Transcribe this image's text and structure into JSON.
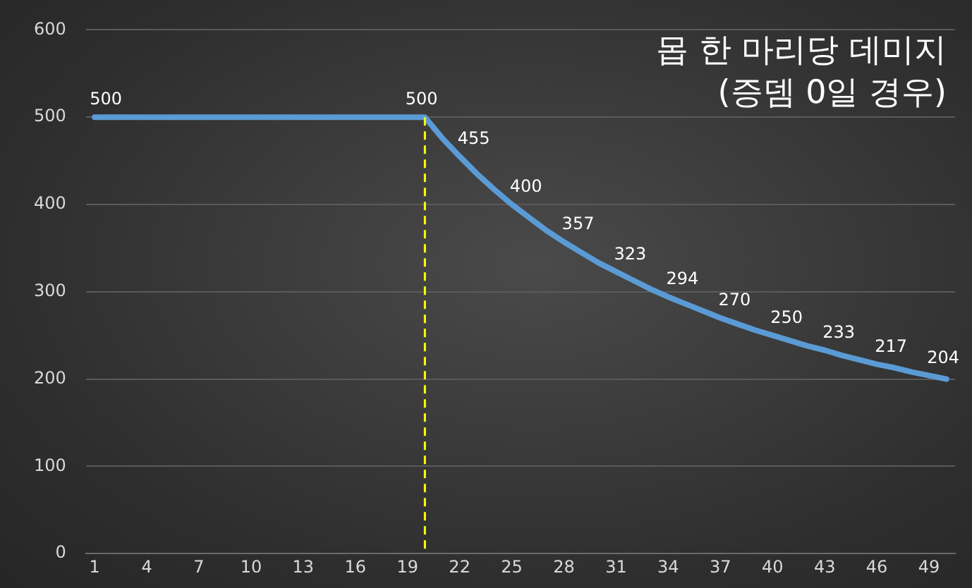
{
  "chart_data": {
    "type": "line",
    "title": "몹 한 마리당 데미지",
    "subtitle": "(증뎀 0일 경우)",
    "x": [
      1,
      2,
      3,
      4,
      5,
      6,
      7,
      8,
      9,
      10,
      11,
      12,
      13,
      14,
      15,
      16,
      17,
      18,
      19,
      20,
      21,
      22,
      23,
      24,
      25,
      26,
      27,
      28,
      29,
      30,
      31,
      32,
      33,
      34,
      35,
      36,
      37,
      38,
      39,
      40,
      41,
      42,
      43,
      44,
      45,
      46,
      47,
      48,
      49,
      50
    ],
    "series": [
      {
        "color": "#5b9bd5",
        "values": [
          500,
          500,
          500,
          500,
          500,
          500,
          500,
          500,
          500,
          500,
          500,
          500,
          500,
          500,
          500,
          500,
          500,
          500,
          500,
          500,
          476,
          455,
          435,
          417,
          400,
          385,
          370,
          357,
          345,
          333,
          323,
          313,
          303,
          294,
          286,
          278,
          270,
          263,
          256,
          250,
          244,
          238,
          233,
          227,
          222,
          217,
          213,
          208,
          204,
          200
        ],
        "value_labels": [
          "500",
          null,
          null,
          null,
          null,
          null,
          null,
          null,
          null,
          null,
          null,
          null,
          null,
          null,
          null,
          null,
          null,
          null,
          "500",
          null,
          null,
          "455",
          null,
          null,
          "400",
          null,
          null,
          "357",
          null,
          null,
          "323",
          null,
          null,
          "294",
          null,
          null,
          "270",
          null,
          null,
          "250",
          null,
          null,
          "233",
          null,
          null,
          "217",
          null,
          null,
          "204",
          null
        ]
      }
    ],
    "xlim": [
      0.5,
      50.5
    ],
    "xticks": [
      1,
      4,
      7,
      10,
      13,
      16,
      19,
      22,
      25,
      28,
      31,
      34,
      37,
      40,
      43,
      46,
      49
    ],
    "ylim": [
      0,
      600
    ],
    "yticks": [
      0,
      100,
      200,
      300,
      400,
      500,
      600
    ],
    "grid": "y",
    "legend": false,
    "marker": "none",
    "line_style": "solid",
    "ref_lines": [
      {
        "axis": "x",
        "value": 20,
        "color": "#ffff00",
        "line_style": "dashed"
      }
    ]
  }
}
